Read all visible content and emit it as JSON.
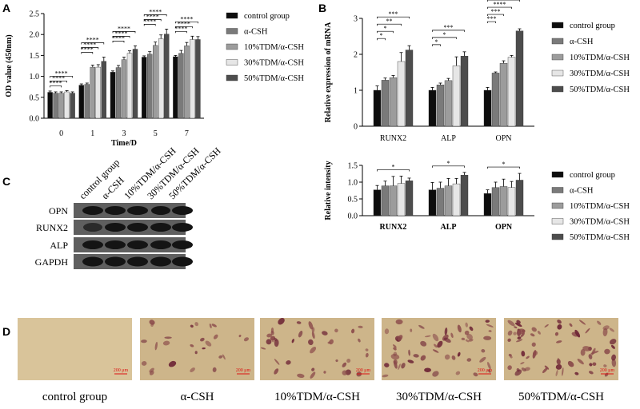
{
  "panels": {
    "a": "A",
    "b": "B",
    "c": "C",
    "d": "D"
  },
  "colors": [
    "#0d0d0d",
    "#7a7a7a",
    "#9c9c9c",
    "#e6e6e6",
    "#4d4d4d"
  ],
  "chart_data": [
    {
      "id": "A",
      "type": "bar",
      "xlabel": "Time/D",
      "ylabel": "OD value (450nm)",
      "categories": [
        "0",
        "1",
        "3",
        "5",
        "7"
      ],
      "ylim": [
        0,
        2.5
      ],
      "yticks": [
        "0.0",
        "0.5",
        "1.0",
        "1.5",
        "2.0",
        "2.5"
      ],
      "series": [
        {
          "name": "control group",
          "values": [
            0.62,
            0.79,
            1.1,
            1.46,
            1.47
          ]
        },
        {
          "name": "α-CSH",
          "values": [
            0.6,
            0.81,
            1.21,
            1.53,
            1.55
          ]
        },
        {
          "name": "10%TDM/α-CSH",
          "values": [
            0.6,
            1.22,
            1.4,
            1.74,
            1.73
          ]
        },
        {
          "name": "30%TDM/α-CSH",
          "values": [
            0.63,
            1.22,
            1.55,
            1.9,
            1.88
          ]
        },
        {
          "name": "50%TDM/α-CSH",
          "values": [
            0.6,
            1.36,
            1.65,
            2.01,
            1.88
          ]
        }
      ],
      "errors": [
        [
          0.03,
          0.03,
          0.03,
          0.03,
          0.03
        ],
        [
          0.03,
          0.03,
          0.05,
          0.06,
          0.07
        ],
        [
          0.03,
          0.05,
          0.06,
          0.08,
          0.08
        ],
        [
          0.03,
          0.06,
          0.06,
          0.09,
          0.08
        ],
        [
          0.03,
          0.1,
          0.08,
          0.12,
          0.07
        ]
      ],
      "significance": [
        {
          "cat": 0,
          "from": 0,
          "to": 2,
          "label": "****"
        },
        {
          "cat": 0,
          "from": 0,
          "to": 3,
          "label": "****"
        },
        {
          "cat": 0,
          "from": 0,
          "to": 4,
          "label": "****"
        },
        {
          "cat": 1,
          "from": 0,
          "to": 2,
          "label": "****"
        },
        {
          "cat": 1,
          "from": 0,
          "to": 3,
          "label": "****"
        },
        {
          "cat": 1,
          "from": 0,
          "to": 4,
          "label": "****"
        },
        {
          "cat": 2,
          "from": 0,
          "to": 2,
          "label": "****"
        },
        {
          "cat": 2,
          "from": 0,
          "to": 3,
          "label": "****"
        },
        {
          "cat": 2,
          "from": 0,
          "to": 4,
          "label": "****"
        },
        {
          "cat": 3,
          "from": 0,
          "to": 2,
          "label": "****"
        },
        {
          "cat": 3,
          "from": 0,
          "to": 3,
          "label": "****"
        },
        {
          "cat": 3,
          "from": 0,
          "to": 4,
          "label": "****"
        },
        {
          "cat": 4,
          "from": 0,
          "to": 2,
          "label": "****"
        },
        {
          "cat": 4,
          "from": 0,
          "to": 3,
          "label": "****"
        },
        {
          "cat": 4,
          "from": 0,
          "to": 4,
          "label": "****"
        }
      ]
    },
    {
      "id": "B",
      "type": "bar",
      "xlabel": "",
      "ylabel": "Relative expression of mRNA",
      "categories": [
        "RUNX2",
        "ALP",
        "OPN"
      ],
      "ylim": [
        0,
        3
      ],
      "yticks": [
        "0",
        "1",
        "2",
        "3"
      ],
      "series": [
        {
          "name": "control group",
          "values": [
            1.0,
            1.0,
            1.0
          ]
        },
        {
          "name": "α-CSH",
          "values": [
            1.28,
            1.15,
            1.48
          ]
        },
        {
          "name": "10%TDM/α-CSH",
          "values": [
            1.35,
            1.27,
            1.75
          ]
        },
        {
          "name": "30%TDM/α-CSH",
          "values": [
            1.8,
            1.68,
            1.92
          ]
        },
        {
          "name": "50%TDM/α-CSH",
          "values": [
            2.12,
            1.95,
            2.65
          ]
        }
      ],
      "errors": [
        [
          0.12,
          0.08,
          0.08
        ],
        [
          0.06,
          0.05,
          0.03
        ],
        [
          0.06,
          0.06,
          0.07
        ],
        [
          0.25,
          0.25,
          0.05
        ],
        [
          0.12,
          0.12,
          0.06
        ]
      ],
      "significance": [
        {
          "cat": 0,
          "from": 0,
          "to": 1,
          "label": "*"
        },
        {
          "cat": 0,
          "from": 0,
          "to": 2,
          "label": "*"
        },
        {
          "cat": 0,
          "from": 0,
          "to": 3,
          "label": "**"
        },
        {
          "cat": 0,
          "from": 0,
          "to": 4,
          "label": "***"
        },
        {
          "cat": 1,
          "from": 0,
          "to": 1,
          "label": "*"
        },
        {
          "cat": 1,
          "from": 0,
          "to": 3,
          "label": "*"
        },
        {
          "cat": 1,
          "from": 0,
          "to": 4,
          "label": "***"
        },
        {
          "cat": 2,
          "from": 0,
          "to": 1,
          "label": "***"
        },
        {
          "cat": 2,
          "from": 0,
          "to": 2,
          "label": "***"
        },
        {
          "cat": 2,
          "from": 0,
          "to": 3,
          "label": "****"
        },
        {
          "cat": 2,
          "from": 0,
          "to": 4,
          "label": "****"
        }
      ]
    },
    {
      "id": "C2",
      "type": "bar",
      "xlabel": "",
      "ylabel": "Relative intensity",
      "categories": [
        "RUNX2",
        "ALP",
        "OPN"
      ],
      "ylim": [
        0,
        1.5
      ],
      "yticks": [
        "0.0",
        "0.5",
        "1.0",
        "1.5"
      ],
      "series": [
        {
          "name": "control group",
          "values": [
            0.77,
            0.77,
            0.66
          ]
        },
        {
          "name": "α-CSH",
          "values": [
            0.89,
            0.82,
            0.84
          ]
        },
        {
          "name": "10%TDM/α-CSH",
          "values": [
            0.89,
            0.89,
            0.87
          ]
        },
        {
          "name": "30%TDM/α-CSH",
          "values": [
            0.96,
            0.95,
            0.84
          ]
        },
        {
          "name": "50%TDM/α-CSH",
          "values": [
            1.04,
            1.21,
            1.06
          ]
        }
      ],
      "errors": [
        [
          0.13,
          0.22,
          0.11
        ],
        [
          0.14,
          0.18,
          0.16
        ],
        [
          0.28,
          0.22,
          0.22
        ],
        [
          0.22,
          0.16,
          0.18
        ],
        [
          0.08,
          0.08,
          0.2
        ]
      ],
      "significance": [
        {
          "cat": 0,
          "from": 0,
          "to": 4,
          "label": "*"
        },
        {
          "cat": 1,
          "from": 0,
          "to": 4,
          "label": "*"
        },
        {
          "cat": 2,
          "from": 0,
          "to": 4,
          "label": "*"
        }
      ]
    }
  ],
  "western_blot": {
    "groups": [
      "control group",
      "α-CSH",
      "10%TDM/α-CSH",
      "30%TDM/α-CSH",
      "50%TDM/α-CSH"
    ],
    "rows": [
      "OPN",
      "RUNX2",
      "ALP",
      "GAPDH"
    ]
  },
  "staining": {
    "labels": [
      "control group",
      "α-CSH",
      "10%TDM/α-CSH",
      "30%TDM/α-CSH",
      "50%TDM/α-CSH"
    ],
    "scale_bar": "200 μm"
  }
}
